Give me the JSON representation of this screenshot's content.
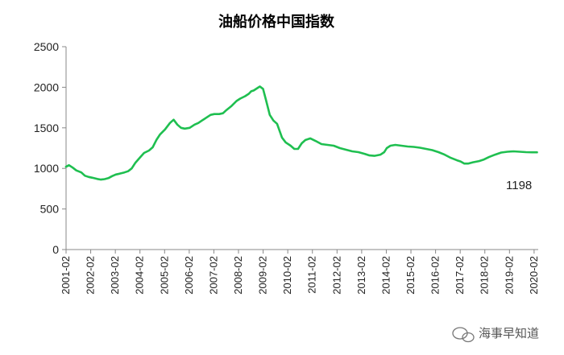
{
  "chart_data": {
    "type": "line",
    "title": "油船价格中国指数",
    "xlabel": "",
    "ylabel": "",
    "ylim": [
      0,
      2500
    ],
    "yticks": [
      0,
      500,
      1000,
      1500,
      2000,
      2500
    ],
    "xlim": [
      2001.083,
      2020.25
    ],
    "xtick_labels": [
      "2001-02",
      "2002-02",
      "2003-02",
      "2004-02",
      "2005-02",
      "2006-02",
      "2007-02",
      "2008-02",
      "2009-02",
      "2010-02",
      "2011-02",
      "2012-02",
      "2013-02",
      "2014-02",
      "2015-02",
      "2016-02",
      "2017-02",
      "2018-02",
      "2019-02",
      "2020-02"
    ],
    "grid": false,
    "legend": "none",
    "series": [
      {
        "color": "#1fbf50",
        "x": [
          2001.08,
          2001.2,
          2001.35,
          2001.5,
          2001.7,
          2001.85,
          2002.0,
          2002.15,
          2002.35,
          2002.5,
          2002.65,
          2002.8,
          2002.95,
          2003.1,
          2003.25,
          2003.45,
          2003.6,
          2003.75,
          2003.9,
          2004.1,
          2004.25,
          2004.45,
          2004.6,
          2004.75,
          2004.9,
          2005.1,
          2005.3,
          2005.45,
          2005.6,
          2005.75,
          2005.9,
          2006.1,
          2006.3,
          2006.45,
          2006.6,
          2006.75,
          2006.95,
          2007.1,
          2007.3,
          2007.45,
          2007.6,
          2007.8,
          2008.0,
          2008.15,
          2008.35,
          2008.5,
          2008.6,
          2008.7,
          2008.85,
          2008.95,
          2009.08,
          2009.2,
          2009.35,
          2009.5,
          2009.65,
          2009.85,
          2010.0,
          2010.2,
          2010.35,
          2010.5,
          2010.65,
          2010.8,
          2011.0,
          2011.2,
          2011.45,
          2011.7,
          2011.95,
          2012.2,
          2012.45,
          2012.7,
          2012.95,
          2013.2,
          2013.4,
          2013.6,
          2013.85,
          2014.0,
          2014.1,
          2014.25,
          2014.45,
          2014.7,
          2014.95,
          2015.2,
          2015.45,
          2015.7,
          2015.95,
          2016.2,
          2016.45,
          2016.7,
          2016.95,
          2017.1,
          2017.25,
          2017.4,
          2017.6,
          2017.85,
          2018.05,
          2018.25,
          2018.5,
          2018.75,
          2019.0,
          2019.25,
          2019.5,
          2019.75,
          2020.0,
          2020.2
        ],
        "values": [
          1020,
          1040,
          1010,
          975,
          950,
          910,
          895,
          885,
          870,
          862,
          868,
          880,
          905,
          925,
          935,
          950,
          965,
          1000,
          1070,
          1140,
          1190,
          1220,
          1260,
          1350,
          1420,
          1480,
          1560,
          1600,
          1540,
          1500,
          1490,
          1500,
          1540,
          1560,
          1590,
          1620,
          1660,
          1670,
          1670,
          1680,
          1720,
          1770,
          1830,
          1860,
          1890,
          1920,
          1950,
          1960,
          1990,
          2010,
          1980,
          1840,
          1660,
          1590,
          1550,
          1380,
          1320,
          1280,
          1240,
          1240,
          1310,
          1350,
          1370,
          1340,
          1300,
          1290,
          1280,
          1250,
          1230,
          1210,
          1200,
          1180,
          1160,
          1155,
          1170,
          1200,
          1250,
          1280,
          1290,
          1280,
          1270,
          1265,
          1255,
          1240,
          1225,
          1200,
          1170,
          1130,
          1100,
          1085,
          1060,
          1060,
          1075,
          1090,
          1110,
          1140,
          1170,
          1195,
          1205,
          1210,
          1205,
          1200,
          1198,
          1198
        ]
      }
    ],
    "annotations": [
      {
        "text": "1198"
      }
    ]
  },
  "watermark": "海事早知道"
}
